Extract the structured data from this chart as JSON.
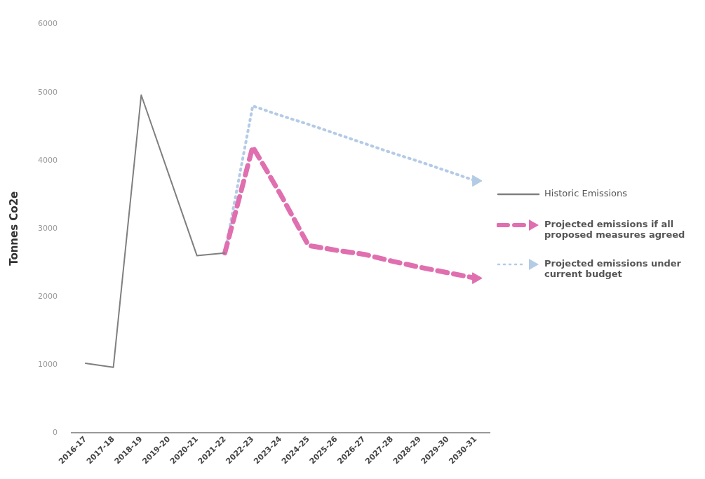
{
  "chart_data": {
    "type": "line",
    "ylabel": "Tonnes Co2e",
    "categories": [
      "2016-17",
      "2017-18",
      "2018-19",
      "2019-20",
      "2020-21",
      "2021-22",
      "2022-23",
      "2023-24",
      "2024-25",
      "2025-26",
      "2026-27",
      "2027-28",
      "2028-29",
      "2029-30",
      "2030-31"
    ],
    "series": [
      {
        "name": "Historic Emissions",
        "color": "#7f7f7f",
        "line_style": "solid",
        "marker": "none",
        "values": [
          1020,
          960,
          4960,
          3780,
          2600,
          2640,
          null,
          null,
          null,
          null,
          null,
          null,
          null,
          null,
          null
        ]
      },
      {
        "name": "Projected emissions if all proposed measures agreed",
        "color": "#e06fb0",
        "line_style": "dashed",
        "marker": "none",
        "values": [
          null,
          null,
          null,
          null,
          null,
          2640,
          4200,
          3500,
          2750,
          2680,
          2620,
          2520,
          2430,
          2350,
          2270
        ]
      },
      {
        "name": "Projected emissions under current budget",
        "color": "#b4cbe6",
        "line_style": "dotted",
        "marker": "none",
        "values": [
          null,
          null,
          null,
          null,
          null,
          2640,
          4800,
          4660,
          4530,
          4390,
          4250,
          4110,
          3980,
          3840,
          3700
        ]
      },
      {
        "type": "scatter",
        "color": "#e06fb0",
        "marker": "triangle",
        "values": [
          null,
          null,
          null,
          null,
          null,
          null,
          null,
          null,
          null,
          null,
          null,
          null,
          null,
          null,
          2270
        ]
      },
      {
        "type": "scatter",
        "color": "#b4cbe6",
        "marker": "triangle",
        "values": [
          null,
          null,
          null,
          null,
          null,
          null,
          null,
          null,
          null,
          null,
          null,
          null,
          null,
          null,
          3700
        ]
      }
    ],
    "ylim": [
      0,
      6000
    ],
    "yticks": [
      0,
      1000,
      2000,
      3000,
      4000,
      5000,
      6000
    ],
    "grid": false,
    "legend": "right"
  }
}
